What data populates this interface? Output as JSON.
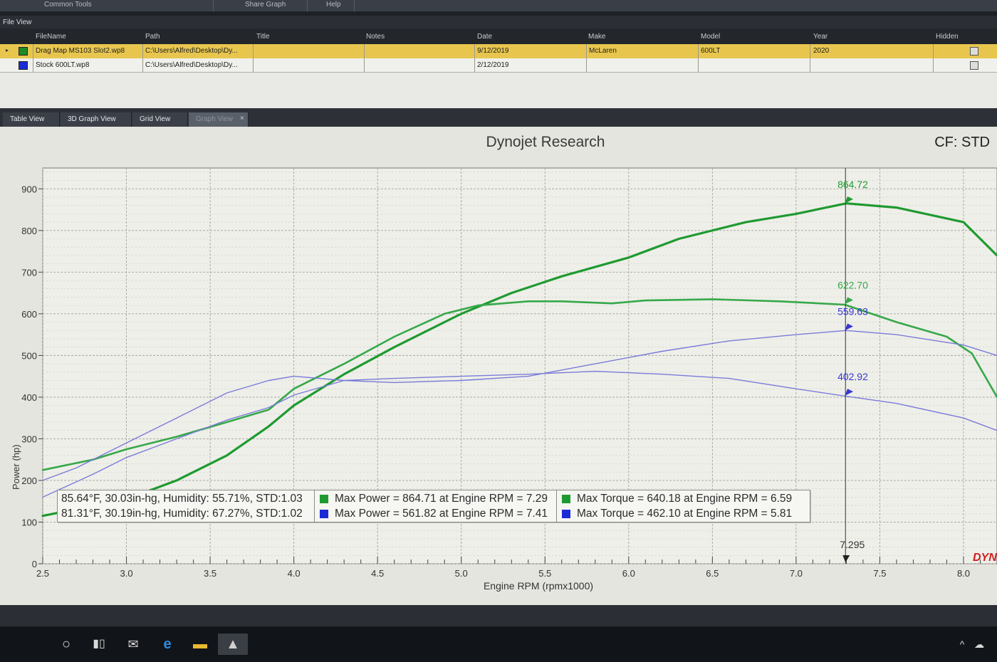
{
  "toolbar": {
    "items": [
      "Common Tools",
      "Share Graph",
      "Help"
    ]
  },
  "file_view": {
    "title": "File View",
    "columns": [
      "FileName",
      "Path",
      "Title",
      "Notes",
      "Date",
      "Make",
      "Model",
      "Year",
      "Hidden"
    ],
    "rows": [
      {
        "color": "#1f8a2a",
        "filename": "Drag Map MS103 Slot2.wp8",
        "path": "C:\\Users\\Alfred\\Desktop\\Dy...",
        "title": "",
        "notes": "",
        "date": "9/12/2019",
        "make": "McLaren",
        "model": "600LT",
        "year": "2020",
        "selected": true
      },
      {
        "color": "#1b2bd6",
        "filename": "Stock 600LT.wp8",
        "path": "C:\\Users\\Alfred\\Desktop\\Dy...",
        "title": "",
        "notes": "",
        "date": "2/12/2019",
        "make": "",
        "model": "",
        "year": "",
        "selected": false
      }
    ]
  },
  "tabs": [
    {
      "label": "Table View",
      "active": false
    },
    {
      "label": "3D Graph View",
      "active": false
    },
    {
      "label": "Grid View",
      "active": false
    },
    {
      "label": "Graph View",
      "active": true
    }
  ],
  "tab_close": "×",
  "graph": {
    "title": "Dynojet Research",
    "cf_label": "CF: STD",
    "logo_text": "DYN",
    "cursor": {
      "x_label": "7.295",
      "x": 7.295
    },
    "marker_labels": [
      "864.72",
      "622.70",
      "559.63",
      "402.92"
    ],
    "legend": [
      {
        "color": "#1f9a30",
        "conditions": "85.64°F, 30.03in-hg, Humidity: 55.71%, STD:1.03",
        "max_power": "Max Power = 864.71 at Engine RPM = 7.29",
        "max_torque": "Max Torque = 640.18 at Engine RPM = 6.59"
      },
      {
        "color": "#1b2bd6",
        "conditions": "81.31°F, 30.19in-hg, Humidity: 67.27%, STD:1.02",
        "max_power": "Max Power = 561.82 at Engine RPM = 7.41",
        "max_torque": "Max Torque = 462.10 at Engine RPM = 5.81"
      }
    ]
  },
  "chart_data": {
    "type": "line",
    "title": "Dynojet Research",
    "xlabel": "Engine RPM (rpmx1000)",
    "ylabel": "Power (hp)",
    "xlim": [
      2.5,
      8.2
    ],
    "ylim": [
      0,
      950
    ],
    "x_ticks": [
      "2.5",
      "3.0",
      "3.5",
      "4.0",
      "4.5",
      "5.0",
      "5.5",
      "6.0",
      "6.5",
      "7.0",
      "7.5",
      "8.0"
    ],
    "y_ticks": [
      "0",
      "100",
      "200",
      "300",
      "400",
      "500",
      "600",
      "700",
      "800",
      "900"
    ],
    "grid": true,
    "series": [
      {
        "color": "#1f9a30",
        "width": 3.2,
        "x": [
          2.5,
          3.0,
          3.3,
          3.6,
          3.85,
          4.0,
          4.3,
          4.6,
          5.0,
          5.3,
          5.6,
          6.0,
          6.3,
          6.7,
          7.0,
          7.3,
          7.6,
          8.0,
          8.2
        ],
        "values": [
          115,
          155,
          200,
          260,
          330,
          380,
          455,
          520,
          600,
          650,
          690,
          735,
          780,
          820,
          840,
          865,
          855,
          820,
          740
        ]
      },
      {
        "color": "#36a84a",
        "width": 2.6,
        "x": [
          2.5,
          2.8,
          3.0,
          3.3,
          3.6,
          3.85,
          4.0,
          4.3,
          4.6,
          4.9,
          5.1,
          5.4,
          5.6,
          5.9,
          6.1,
          6.5,
          6.9,
          7.29,
          7.6,
          7.9,
          8.05,
          8.2
        ],
        "values": [
          225,
          250,
          275,
          305,
          340,
          370,
          420,
          480,
          545,
          600,
          620,
          630,
          630,
          625,
          632,
          635,
          630,
          622,
          580,
          545,
          505,
          400
        ]
      },
      {
        "color": "#7a7bd8",
        "width": 1.4,
        "x": [
          2.5,
          2.7,
          3.0,
          3.3,
          3.6,
          3.85,
          4.0,
          4.3,
          4.6,
          5.0,
          5.4,
          5.8,
          6.2,
          6.6,
          7.0,
          7.3,
          7.6,
          8.0,
          8.2
        ],
        "values": [
          200,
          230,
          290,
          350,
          410,
          440,
          450,
          440,
          435,
          440,
          450,
          480,
          510,
          535,
          550,
          560,
          550,
          525,
          500
        ]
      },
      {
        "color": "#7a7bd8",
        "width": 1.4,
        "x": [
          2.5,
          2.8,
          3.0,
          3.3,
          3.6,
          3.85,
          4.0,
          4.3,
          4.6,
          5.0,
          5.4,
          5.8,
          6.2,
          6.6,
          7.0,
          7.3,
          7.6,
          8.0,
          8.2
        ],
        "values": [
          160,
          215,
          255,
          300,
          345,
          375,
          405,
          440,
          445,
          450,
          455,
          462,
          455,
          445,
          420,
          402,
          385,
          350,
          320
        ]
      }
    ],
    "markers": [
      {
        "x": 7.29,
        "y": 864.72,
        "label": "864.72",
        "color": "#1f9a30"
      },
      {
        "x": 7.29,
        "y": 622.7,
        "label": "622.70",
        "color": "#36a84a"
      },
      {
        "x": 7.29,
        "y": 559.63,
        "label": "559.63",
        "color": "#3838d0"
      },
      {
        "x": 7.29,
        "y": 402.92,
        "label": "402.92",
        "color": "#3838d0"
      }
    ]
  },
  "taskbar": {
    "icons": [
      "cortana-circle-icon",
      "task-view-icon",
      "mail-icon",
      "edge-icon",
      "file-explorer-icon",
      "dynojet-app-icon"
    ],
    "tray": "^"
  }
}
